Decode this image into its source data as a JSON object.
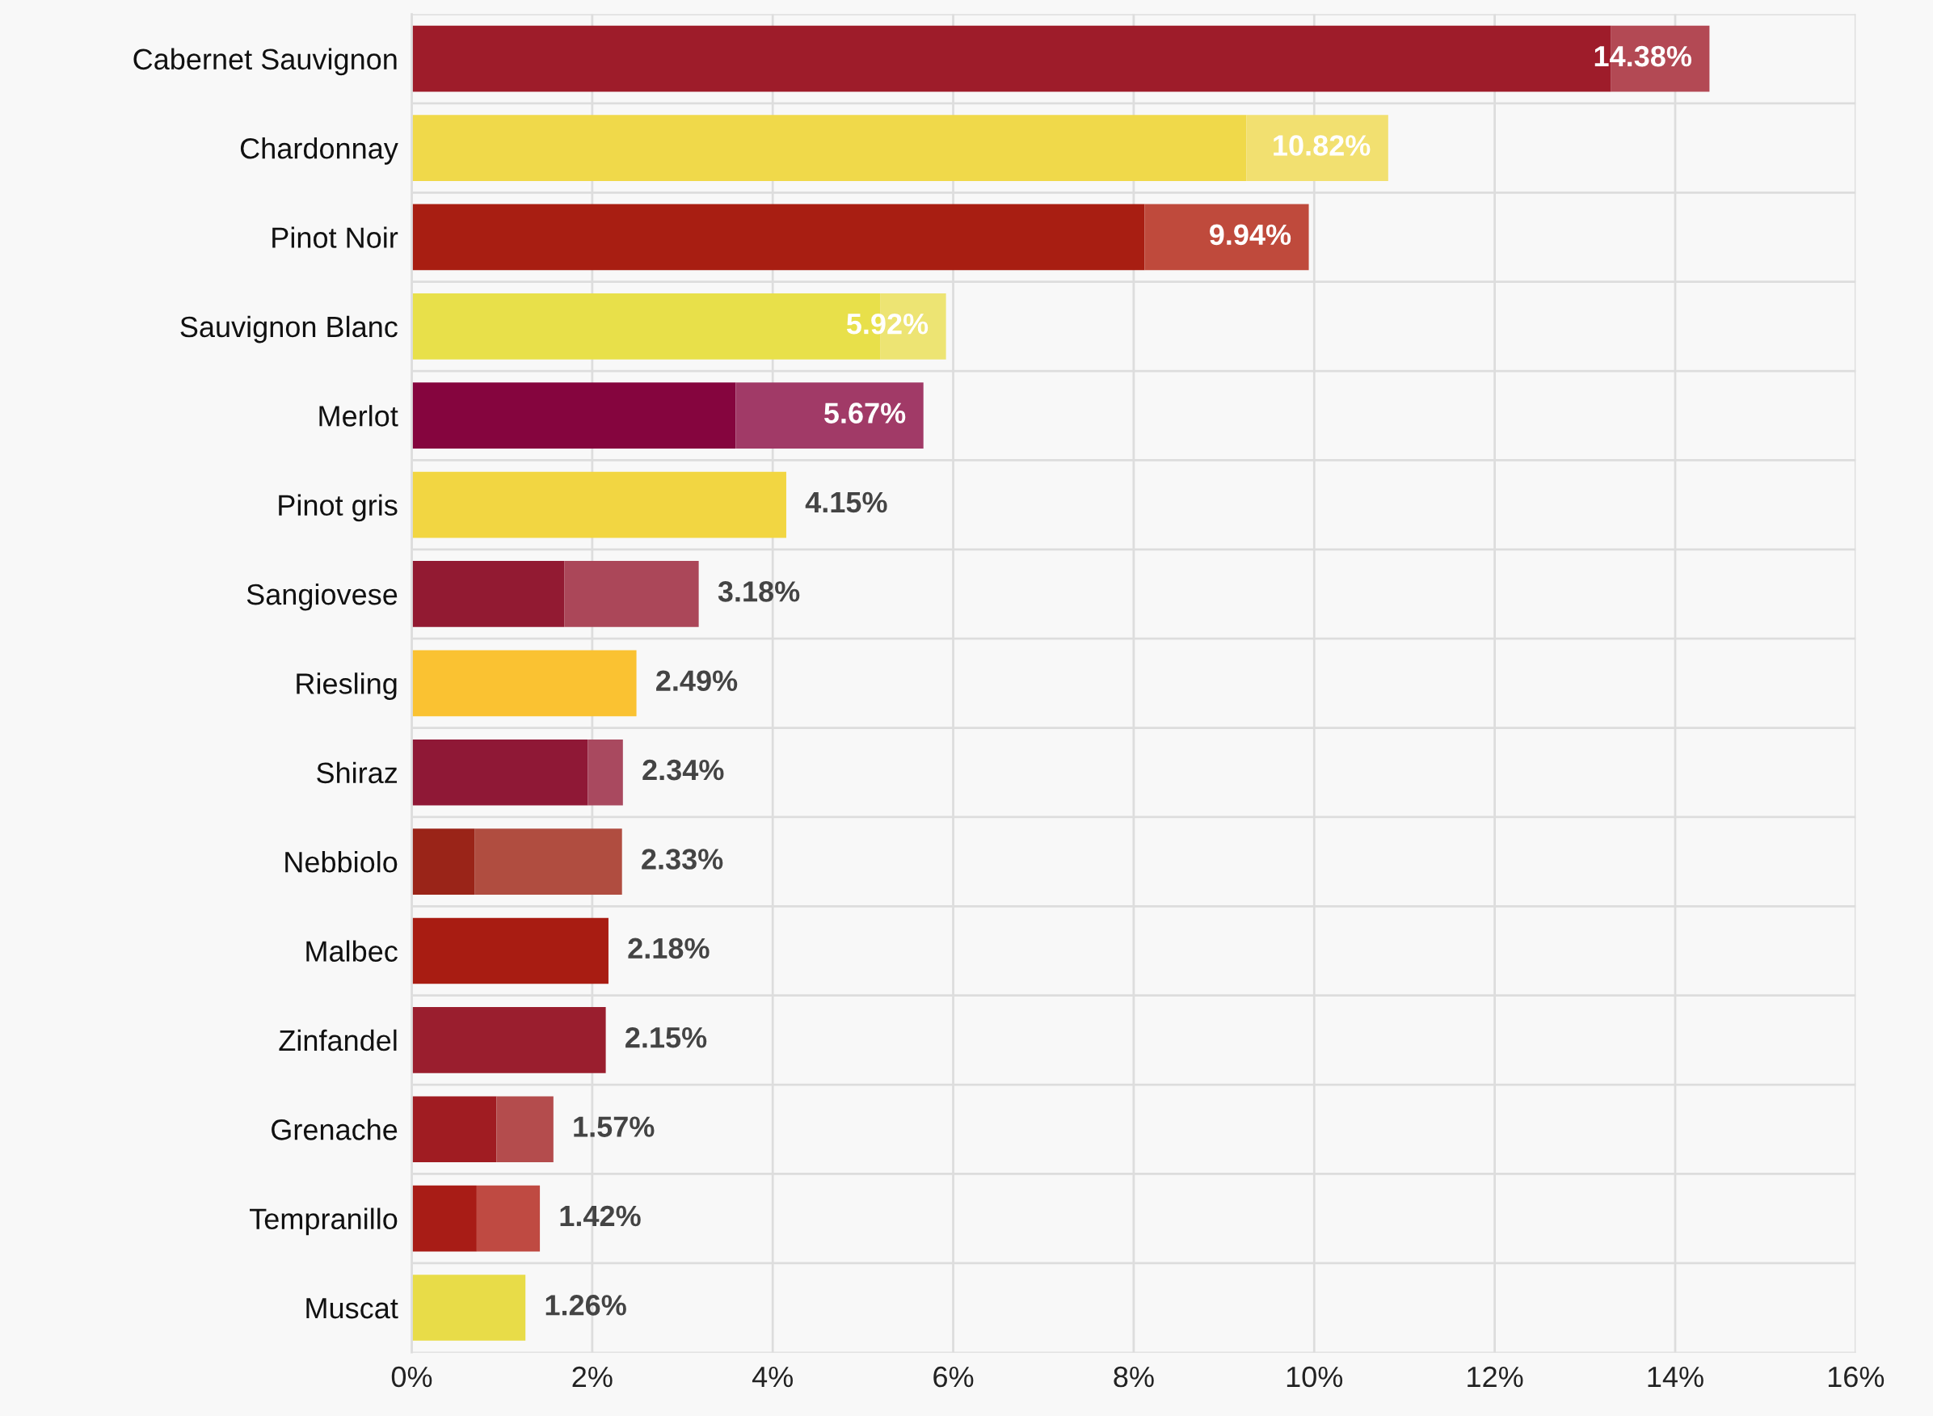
{
  "chart_data": {
    "type": "bar",
    "orientation": "horizontal",
    "stacked": true,
    "categories": [
      "Cabernet Sauvignon",
      "Chardonnay",
      "Pinot Noir",
      "Sauvignon Blanc",
      "Merlot",
      "Pinot gris",
      "Sangiovese",
      "Riesling",
      "Shiraz",
      "Nebbiolo",
      "Malbec",
      "Zinfandel",
      "Grenache",
      "Tempranillo",
      "Muscat"
    ],
    "series": [
      {
        "colors": [
          "#9e1c2a",
          "#f0d94a",
          "#a81e12",
          "#e8e04a",
          "#85053e",
          "#f2d642",
          "#921a32",
          "#fac232",
          "#8f1836",
          "#9a2418",
          "#a81c12",
          "#9a1e2e",
          "#a01c22",
          "#a81c16",
          "#e8dc48"
        ],
        "values": [
          13.29,
          9.25,
          8.12,
          5.19,
          3.59,
          4.15,
          1.69,
          2.49,
          1.95,
          0.7,
          2.18,
          2.15,
          0.94,
          0.72,
          1.26
        ]
      },
      {
        "colors": [
          "#b34954",
          "#f2e070",
          "#bf4a3c",
          "#ede473",
          "#a13a67",
          "#f2d642",
          "#ab4759",
          "#fac232",
          "#a9495f",
          "#b04d40",
          "#a81c12",
          "#9a1e2e",
          "#b44c4d",
          "#bf4a42",
          "#e8dc48"
        ],
        "values": [
          1.09,
          1.57,
          1.82,
          0.73,
          2.08,
          null,
          1.49,
          null,
          0.39,
          1.63,
          null,
          null,
          0.63,
          0.7,
          null
        ]
      }
    ],
    "totals": [
      "14.38%",
      "10.82%",
      "9.94%",
      "5.92%",
      "5.67%",
      "4.15%",
      "3.18%",
      "2.49%",
      "2.34%",
      "2.33%",
      "2.18%",
      "2.15%",
      "1.57%",
      "1.42%",
      "1.26%"
    ],
    "xlim": [
      0,
      16
    ],
    "xticks": [
      {
        "value": 0,
        "label": "0%"
      },
      {
        "value": 2,
        "label": "2%"
      },
      {
        "value": 4,
        "label": "4%"
      },
      {
        "value": 6,
        "label": "6%"
      },
      {
        "value": 8,
        "label": "8%"
      },
      {
        "value": 10,
        "label": "10%"
      },
      {
        "value": 12,
        "label": "12%"
      },
      {
        "value": 14,
        "label": "14%"
      },
      {
        "value": 16,
        "label": "16%"
      }
    ],
    "grid": true
  }
}
